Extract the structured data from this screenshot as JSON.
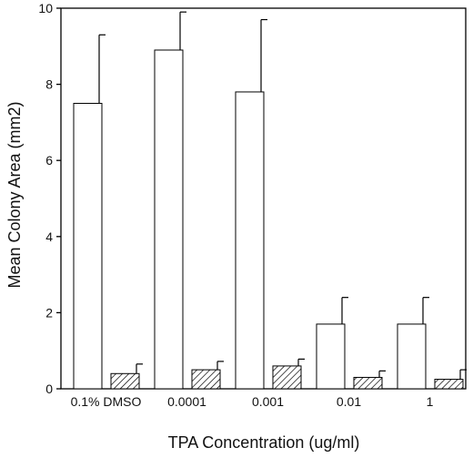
{
  "chart_data": {
    "type": "bar",
    "title": "",
    "xlabel": "TPA Concentration (ug/ml)",
    "ylabel": "Mean Colony Area (mm2)",
    "ylim": [
      0,
      10
    ],
    "yticks": [
      0,
      2,
      4,
      6,
      8,
      10
    ],
    "categories": [
      "0.1% DMSO",
      "0.0001",
      "0.001",
      "0.01",
      "1"
    ],
    "series": [
      {
        "fill": "white",
        "values": [
          7.5,
          8.9,
          7.8,
          1.7,
          1.7
        ],
        "errors": [
          1.8,
          1.0,
          1.9,
          0.7,
          0.7
        ]
      },
      {
        "fill": "hatched",
        "values": [
          0.4,
          0.5,
          0.6,
          0.3,
          0.25
        ],
        "errors": [
          0.25,
          0.22,
          0.18,
          0.17,
          0.25
        ]
      }
    ],
    "grid": false,
    "legend": "none"
  },
  "colors": {
    "bar_stroke": "#000000",
    "bar_fill": "#ffffff",
    "hatch": "#000000",
    "axis": "#000000"
  }
}
